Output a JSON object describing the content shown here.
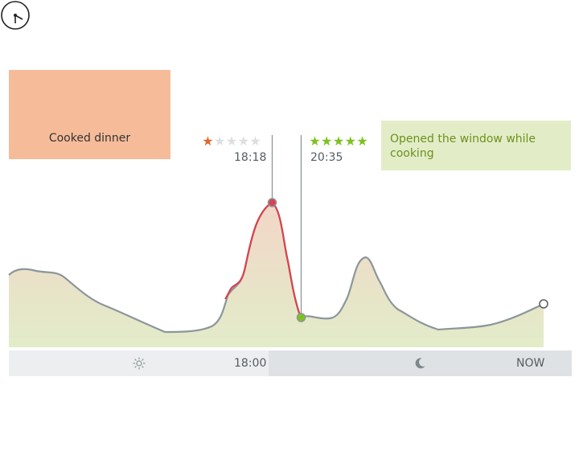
{
  "event": {
    "label": "Cooked dinner",
    "icon": "clock-icon",
    "color": "#f6bc9a"
  },
  "note": {
    "text": "Opened the window while cooking",
    "color": "#e2edc7"
  },
  "markers": [
    {
      "time": "18:18",
      "rating": 1,
      "max_rating": 5,
      "color": "#d8434f"
    },
    {
      "time": "20:35",
      "rating": 5,
      "max_rating": 5,
      "color": "#7cc21e"
    }
  ],
  "timeline": {
    "time_label": "18:00",
    "now_label": "NOW",
    "day_icon": "sun-icon",
    "night_icon": "moon-icon"
  },
  "colors": {
    "line": "#8c969b",
    "highlight": "#d8434f",
    "good": "#7cc21e"
  }
}
